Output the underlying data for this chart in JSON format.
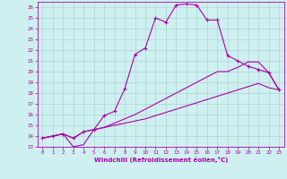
{
  "bg_color": "#cff0f0",
  "line_color": "#aa00aa",
  "grid_color": "#aacccc",
  "ylim": [
    13,
    26.5
  ],
  "xlim": [
    -0.5,
    23.5
  ],
  "yticks": [
    13,
    14,
    15,
    16,
    17,
    18,
    19,
    20,
    21,
    22,
    23,
    24,
    25,
    26
  ],
  "xticks": [
    0,
    1,
    2,
    3,
    4,
    5,
    6,
    7,
    8,
    9,
    10,
    11,
    12,
    13,
    14,
    15,
    16,
    17,
    18,
    19,
    20,
    21,
    22,
    23
  ],
  "xlabel": "Windchill (Refroidissement éolien,°C)",
  "line1_x": [
    0,
    1,
    2,
    3,
    4,
    5,
    6,
    7,
    8,
    9,
    10,
    11,
    12,
    13,
    14,
    15,
    16,
    17,
    18,
    19,
    20,
    21,
    22,
    23
  ],
  "line1_y": [
    13.8,
    14.0,
    14.2,
    13.8,
    14.4,
    14.6,
    15.9,
    16.3,
    18.4,
    21.6,
    22.2,
    25.0,
    24.6,
    26.2,
    26.3,
    26.2,
    24.8,
    24.8,
    21.5,
    21.0,
    20.5,
    20.2,
    19.9,
    18.3
  ],
  "line2_x": [
    0,
    1,
    2,
    3,
    4,
    5,
    6,
    7,
    8,
    9,
    10,
    11,
    12,
    13,
    14,
    15,
    16,
    17,
    18,
    19,
    20,
    21,
    22,
    23
  ],
  "line2_y": [
    13.8,
    14.0,
    14.2,
    13.8,
    14.4,
    14.6,
    14.8,
    15.2,
    15.6,
    16.0,
    16.5,
    17.0,
    17.5,
    18.0,
    18.5,
    19.0,
    19.5,
    20.0,
    20.0,
    20.4,
    20.9,
    20.9,
    19.9,
    18.3
  ],
  "line3_x": [
    0,
    1,
    2,
    3,
    4,
    5,
    6,
    7,
    8,
    9,
    10,
    11,
    12,
    13,
    14,
    15,
    16,
    17,
    18,
    19,
    20,
    21,
    22,
    23
  ],
  "line3_y": [
    13.8,
    14.0,
    14.2,
    13.0,
    13.2,
    14.6,
    14.8,
    15.0,
    15.2,
    15.4,
    15.6,
    15.9,
    16.2,
    16.5,
    16.8,
    17.1,
    17.4,
    17.7,
    18.0,
    18.3,
    18.6,
    18.9,
    18.5,
    18.3
  ]
}
